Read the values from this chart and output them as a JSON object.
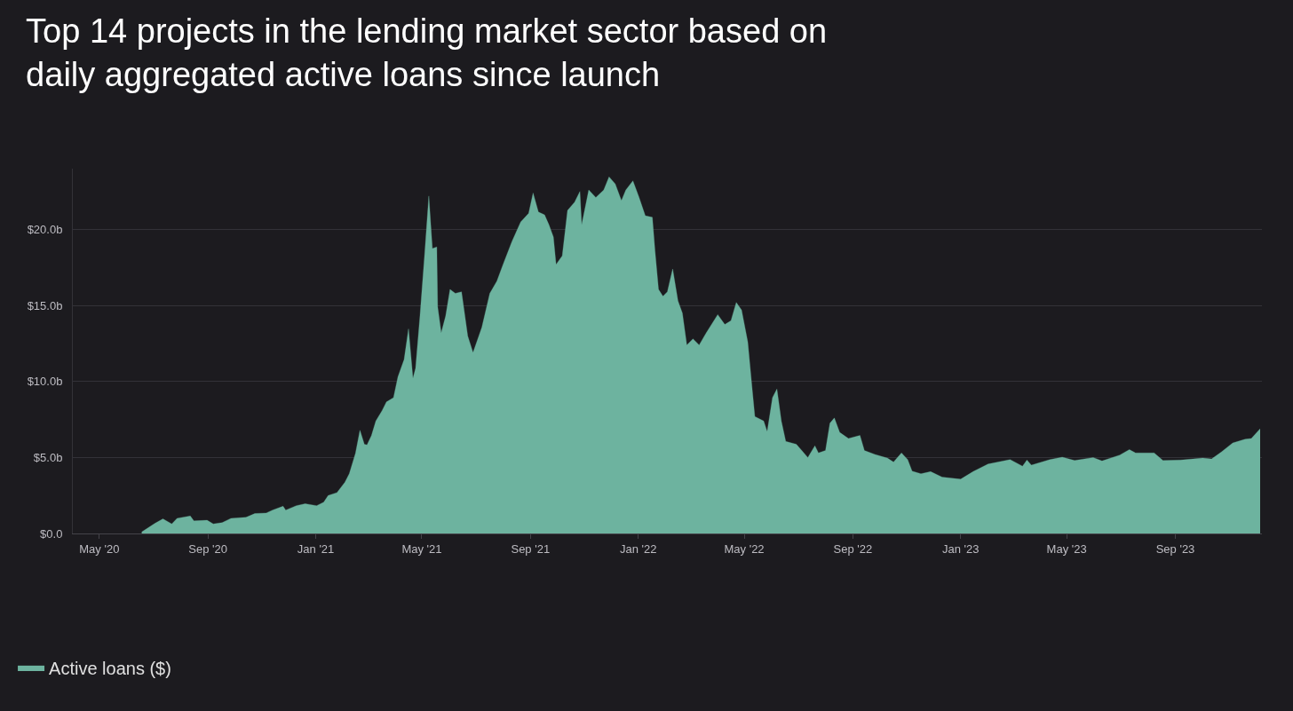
{
  "chart_data": {
    "type": "area",
    "title": "Top 14 projects in the lending market sector based on daily aggregated active loans since launch",
    "x": [
      "2020-06-18",
      "2020-07-03",
      "2020-07-12",
      "2020-07-22",
      "2020-07-28",
      "2020-08-12",
      "2020-08-16",
      "2020-08-31",
      "2020-09-07",
      "2020-09-17",
      "2020-09-27",
      "2020-10-14",
      "2020-10-24",
      "2020-11-06",
      "2020-11-13",
      "2020-11-25",
      "2020-11-28",
      "2020-12-10",
      "2020-12-20",
      "2021-01-02",
      "2021-01-10",
      "2021-01-15",
      "2021-01-25",
      "2021-02-03",
      "2021-02-08",
      "2021-02-15",
      "2021-02-20",
      "2021-02-25",
      "2021-02-28",
      "2021-03-05",
      "2021-03-10",
      "2021-03-17",
      "2021-03-22",
      "2021-03-30",
      "2021-04-04",
      "2021-04-11",
      "2021-04-16",
      "2021-04-21",
      "2021-04-24",
      "2021-04-29",
      "2021-05-04",
      "2021-05-09",
      "2021-05-13",
      "2021-05-18",
      "2021-05-19",
      "2021-05-23",
      "2021-05-28",
      "2021-06-02",
      "2021-06-08",
      "2021-06-15",
      "2021-06-22",
      "2021-06-28",
      "2021-07-08",
      "2021-07-17",
      "2021-07-25",
      "2021-08-01",
      "2021-08-11",
      "2021-08-21",
      "2021-08-30",
      "2021-09-04",
      "2021-09-10",
      "2021-09-17",
      "2021-09-22",
      "2021-09-27",
      "2021-09-30",
      "2021-10-07",
      "2021-10-13",
      "2021-10-21",
      "2021-10-27",
      "2021-10-29",
      "2021-11-06",
      "2021-11-14",
      "2021-11-23",
      "2021-11-29",
      "2021-12-06",
      "2021-12-13",
      "2021-12-18",
      "2021-12-26",
      "2022-01-02",
      "2022-01-09",
      "2022-01-17",
      "2022-01-20",
      "2022-01-24",
      "2022-01-29",
      "2022-02-03",
      "2022-02-09",
      "2022-02-15",
      "2022-02-20",
      "2022-02-25",
      "2022-03-04",
      "2022-03-11",
      "2022-03-19",
      "2022-04-01",
      "2022-04-09",
      "2022-04-16",
      "2022-04-22",
      "2022-04-28",
      "2022-05-05",
      "2022-05-10",
      "2022-05-13",
      "2022-05-23",
      "2022-05-27",
      "2022-06-02",
      "2022-06-07",
      "2022-06-12",
      "2022-06-17",
      "2022-06-29",
      "2022-07-12",
      "2022-07-20",
      "2022-07-24",
      "2022-08-01",
      "2022-08-06",
      "2022-08-11",
      "2022-08-17",
      "2022-08-27",
      "2022-09-09",
      "2022-09-14",
      "2022-09-26",
      "2022-10-10",
      "2022-10-17",
      "2022-10-26",
      "2022-11-02",
      "2022-11-07",
      "2022-11-17",
      "2022-11-28",
      "2022-12-11",
      "2023-01-01",
      "2023-01-15",
      "2023-02-01",
      "2023-02-26",
      "2023-03-12",
      "2023-03-17",
      "2023-03-22",
      "2023-04-12",
      "2023-04-26",
      "2023-05-10",
      "2023-05-31",
      "2023-06-10",
      "2023-06-30",
      "2023-07-11",
      "2023-07-18",
      "2023-08-08",
      "2023-08-18",
      "2023-09-07",
      "2023-10-02",
      "2023-10-12",
      "2023-10-23",
      "2023-11-05",
      "2023-11-19",
      "2023-11-26",
      "2023-12-06"
    ],
    "series": [
      {
        "name": "Active loans ($)",
        "color": "#6db39f",
        "values": [
          0.1,
          0.67,
          0.96,
          0.63,
          1.0,
          1.15,
          0.83,
          0.87,
          0.63,
          0.71,
          1.0,
          1.06,
          1.31,
          1.35,
          1.54,
          1.79,
          1.54,
          1.83,
          1.96,
          1.83,
          2.06,
          2.5,
          2.69,
          3.37,
          3.94,
          5.29,
          6.79,
          5.87,
          5.83,
          6.44,
          7.4,
          8.08,
          8.65,
          8.94,
          10.3,
          11.44,
          13.46,
          10.2,
          10.87,
          14.33,
          18.17,
          22.2,
          18.75,
          18.85,
          14.9,
          13.2,
          14.3,
          16.06,
          15.8,
          15.9,
          13.0,
          11.9,
          13.56,
          15.8,
          16.6,
          17.7,
          19.2,
          20.5,
          21.06,
          22.4,
          21.15,
          20.96,
          20.3,
          19.5,
          17.7,
          18.27,
          21.25,
          21.8,
          22.5,
          20.3,
          22.6,
          22.1,
          22.6,
          23.46,
          23.0,
          21.9,
          22.6,
          23.2,
          22.1,
          20.9,
          20.8,
          18.6,
          16.06,
          15.6,
          15.9,
          17.4,
          15.3,
          14.5,
          12.4,
          12.8,
          12.4,
          13.2,
          14.4,
          13.75,
          14.0,
          15.2,
          14.7,
          12.6,
          9.5,
          7.7,
          7.4,
          6.7,
          8.94,
          9.5,
          7.4,
          6.06,
          5.87,
          5.0,
          5.77,
          5.3,
          5.46,
          7.25,
          7.6,
          6.65,
          6.25,
          6.45,
          5.46,
          5.2,
          4.96,
          4.7,
          5.3,
          4.86,
          4.1,
          3.93,
          4.07,
          3.71,
          3.57,
          4.07,
          4.57,
          4.86,
          4.43,
          4.83,
          4.5,
          4.86,
          5.02,
          4.8,
          5.0,
          4.77,
          5.16,
          5.52,
          5.3,
          5.3,
          4.8,
          4.83,
          4.96,
          4.9,
          5.36,
          5.96,
          6.2,
          6.25,
          6.89
        ]
      }
    ],
    "xlim": [
      "2020-04-01",
      "2023-12-08"
    ],
    "xticks": [
      {
        "value": "2020-05-01",
        "label": "May '20"
      },
      {
        "value": "2020-09-01",
        "label": "Sep '20"
      },
      {
        "value": "2021-01-01",
        "label": "Jan '21"
      },
      {
        "value": "2021-05-01",
        "label": "May '21"
      },
      {
        "value": "2021-09-01",
        "label": "Sep '21"
      },
      {
        "value": "2022-01-01",
        "label": "Jan '22"
      },
      {
        "value": "2022-05-01",
        "label": "May '22"
      },
      {
        "value": "2022-09-01",
        "label": "Sep '22"
      },
      {
        "value": "2023-01-01",
        "label": "Jan '23"
      },
      {
        "value": "2023-05-01",
        "label": "May '23"
      },
      {
        "value": "2023-09-01",
        "label": "Sep '23"
      }
    ],
    "ylim": [
      0,
      24
    ],
    "yticks": [
      {
        "value": 0,
        "label": "$0.0"
      },
      {
        "value": 5,
        "label": "$5.0b"
      },
      {
        "value": 10,
        "label": "$10.0b"
      },
      {
        "value": 15,
        "label": "$15.0b"
      },
      {
        "value": 20,
        "label": "$20.0b"
      }
    ],
    "grid": "y",
    "legend": "bottom left"
  }
}
